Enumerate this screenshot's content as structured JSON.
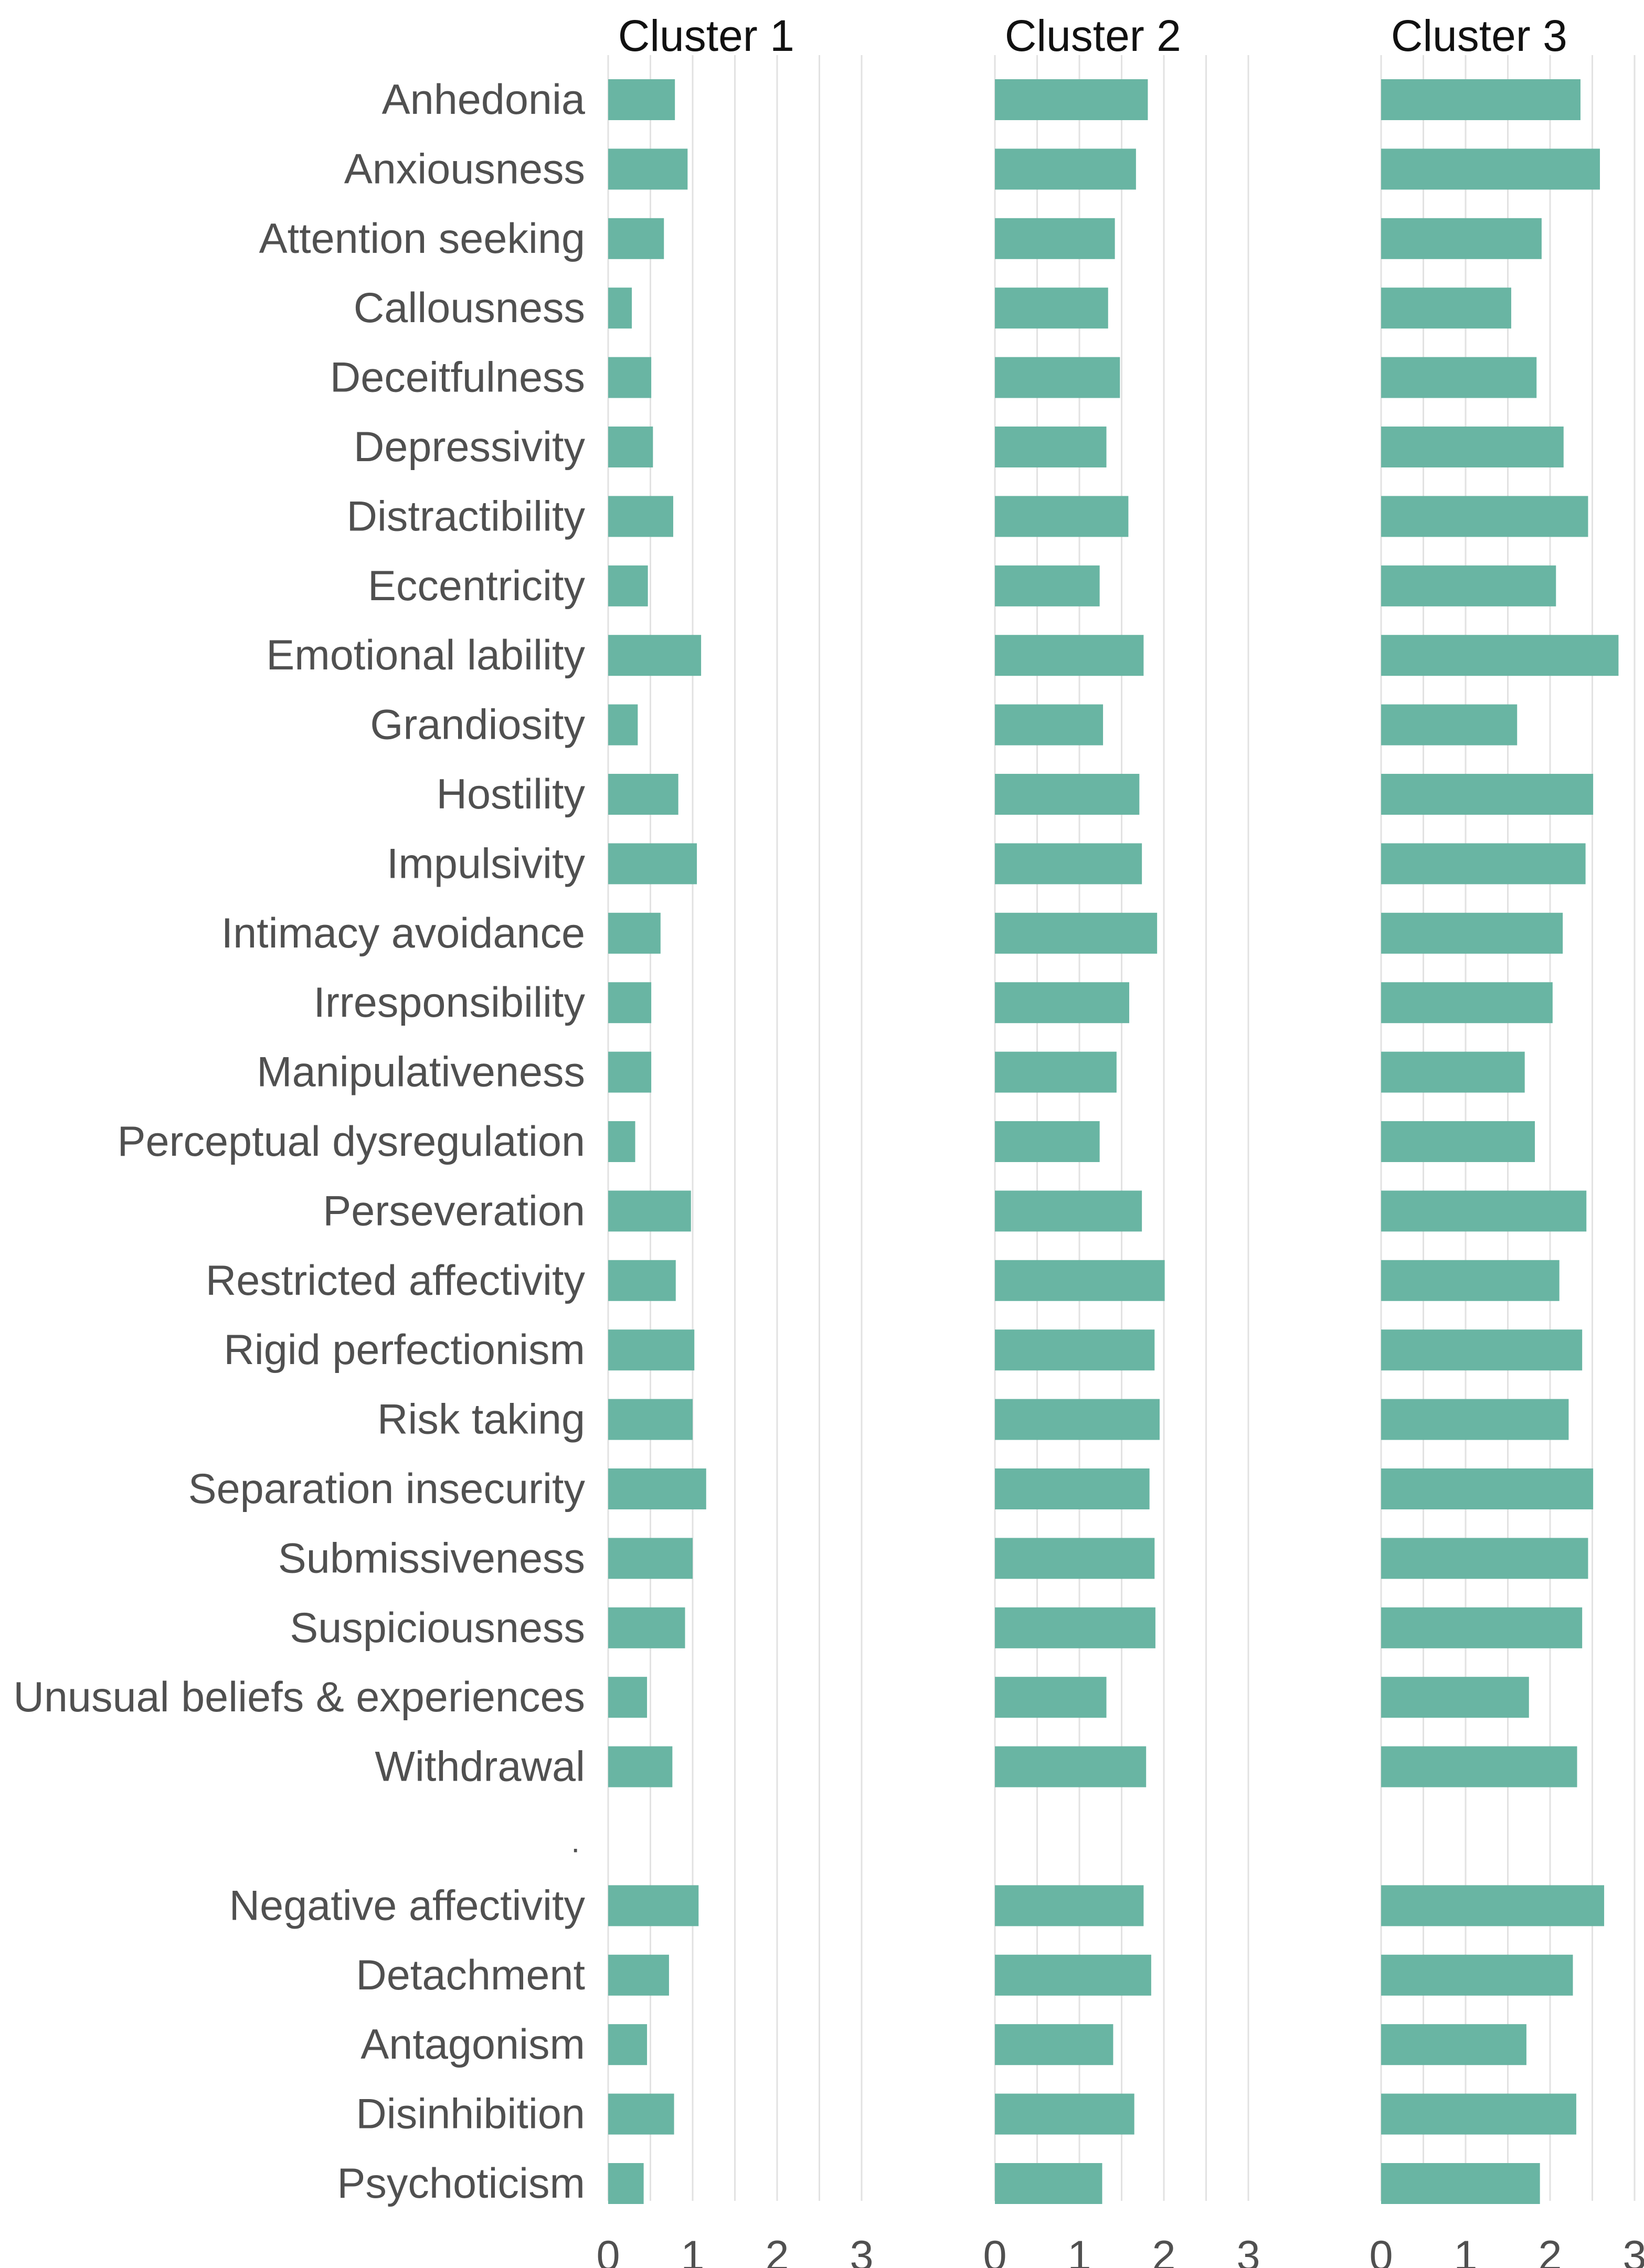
{
  "chart_data": {
    "type": "bar",
    "orientation": "horizontal",
    "bar_color": "#69b5a3",
    "grid_color": "#e2e2e2",
    "label_color": "#505050",
    "title_color": "#111111",
    "xlim": [
      0,
      3.1
    ],
    "xticks": [
      "0",
      "1",
      "2",
      "3"
    ],
    "separator_label": ".",
    "categories": [
      "Anhedonia",
      "Anxiousness",
      "Attention seeking",
      "Callousness",
      "Deceitfulness",
      "Depressivity",
      "Distractibility",
      "Eccentricity",
      "Emotional lability",
      "Grandiosity",
      "Hostility",
      "Impulsivity",
      "Intimacy avoidance",
      "Irresponsibility",
      "Manipulativeness",
      "Perceptual dysregulation",
      "Perseveration",
      "Restricted affectivity",
      "Rigid perfectionism",
      "Risk taking",
      "Separation insecurity",
      "Submissiveness",
      "Suspiciousness",
      "Unusual beliefs & experiences",
      "Withdrawal",
      "Negative affectivity",
      "Detachment",
      "Antagonism",
      "Disinhibition",
      "Psychoticism"
    ],
    "series": [
      {
        "name": "Cluster 1",
        "values": [
          0.79,
          0.94,
          0.66,
          0.28,
          0.51,
          0.53,
          0.77,
          0.47,
          1.1,
          0.35,
          0.83,
          1.05,
          0.62,
          0.51,
          0.51,
          0.32,
          0.98,
          0.8,
          1.02,
          1.0,
          1.16,
          1.0,
          0.91,
          0.46,
          0.76,
          1.07,
          0.72,
          0.46,
          0.78,
          0.42
        ]
      },
      {
        "name": "Cluster 2",
        "values": [
          1.81,
          1.67,
          1.42,
          1.34,
          1.48,
          1.32,
          1.58,
          1.24,
          1.76,
          1.28,
          1.71,
          1.74,
          1.92,
          1.59,
          1.44,
          1.24,
          1.74,
          2.01,
          1.89,
          1.95,
          1.83,
          1.89,
          1.9,
          1.32,
          1.79,
          1.76,
          1.85,
          1.4,
          1.65,
          1.27
        ]
      },
      {
        "name": "Cluster 3",
        "values": [
          2.36,
          2.59,
          1.9,
          1.54,
          1.84,
          2.16,
          2.45,
          2.07,
          2.81,
          1.61,
          2.51,
          2.42,
          2.15,
          2.03,
          1.7,
          1.82,
          2.43,
          2.11,
          2.38,
          2.22,
          2.51,
          2.45,
          2.38,
          1.75,
          2.32,
          2.64,
          2.27,
          1.72,
          2.31,
          1.88
        ]
      }
    ]
  }
}
